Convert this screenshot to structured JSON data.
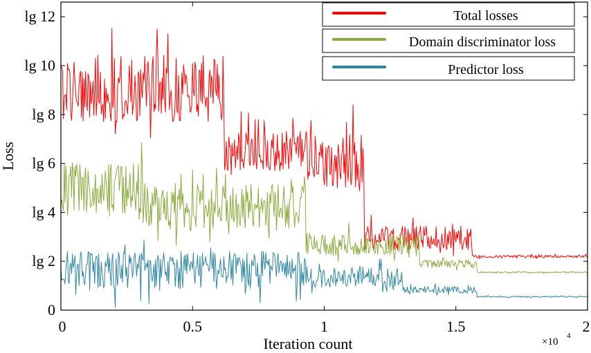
{
  "chart_data": {
    "type": "line",
    "title": "",
    "xlabel": "Iteration count",
    "ylabel": "Loss",
    "x_multiplier": "×10^4",
    "x_multiplier_base": "×10",
    "x_multiplier_exp": "4",
    "xlim": [
      0,
      2
    ],
    "ylim": [
      0,
      12.6
    ],
    "x_ticks": [
      0,
      0.5,
      1,
      1.5,
      2
    ],
    "x_tick_labels": [
      "0",
      "0.5",
      "1",
      "1.5",
      "2"
    ],
    "y_ticks": [
      0,
      2,
      4,
      6,
      8,
      10,
      12
    ],
    "y_tick_labels": [
      "0",
      "lg 2",
      "lg 4",
      "lg 6",
      "lg 8",
      "lg 10",
      "lg 12"
    ],
    "grid": false,
    "legend_position": "top-right",
    "noise_note": "Each series is a noisy training curve; segments give the mean level and the fluctuation range over iteration intervals (x in units of 10^4).",
    "series": [
      {
        "name": "Total losses",
        "color": "#ff0000",
        "segments": [
          {
            "x": [
              0.0,
              0.62
            ],
            "mean": 8.8,
            "range": [
              6.8,
              11.8
            ]
          },
          {
            "x": [
              0.62,
              0.93
            ],
            "mean": 6.3,
            "range": [
              5.2,
              8.2
            ]
          },
          {
            "x": [
              0.93,
              1.15
            ],
            "mean": 5.9,
            "range": [
              4.2,
              8.5
            ]
          },
          {
            "x": [
              1.15,
              1.56
            ],
            "mean": 2.9,
            "range": [
              2.1,
              3.9
            ]
          },
          {
            "x": [
              1.56,
              2.0
            ],
            "mean": 2.2,
            "range": [
              2.1,
              2.3
            ]
          }
        ]
      },
      {
        "name": "Domain discriminator loss",
        "color": "#8aab3c",
        "segments": [
          {
            "x": [
              0.0,
              0.31
            ],
            "mean": 4.9,
            "range": [
              3.2,
              7.0
            ]
          },
          {
            "x": [
              0.31,
              0.93
            ],
            "mean": 4.2,
            "range": [
              2.6,
              6.0
            ]
          },
          {
            "x": [
              0.93,
              1.36
            ],
            "mean": 2.6,
            "range": [
              1.9,
              3.6
            ]
          },
          {
            "x": [
              1.36,
              1.58
            ],
            "mean": 1.9,
            "range": [
              1.6,
              2.2
            ]
          },
          {
            "x": [
              1.58,
              2.0
            ],
            "mean": 1.55,
            "range": [
              1.5,
              1.6
            ]
          }
        ]
      },
      {
        "name": "Predictor loss",
        "color": "#2e86a3",
        "segments": [
          {
            "x": [
              0.0,
              0.93
            ],
            "mean": 1.8,
            "range": [
              0.1,
              2.9
            ]
          },
          {
            "x": [
              0.93,
              1.3
            ],
            "mean": 1.3,
            "range": [
              0.6,
              2.2
            ]
          },
          {
            "x": [
              1.3,
              1.58
            ],
            "mean": 0.8,
            "range": [
              0.6,
              1.1
            ]
          },
          {
            "x": [
              1.58,
              2.0
            ],
            "mean": 0.55,
            "range": [
              0.5,
              0.6
            ]
          }
        ]
      }
    ]
  }
}
